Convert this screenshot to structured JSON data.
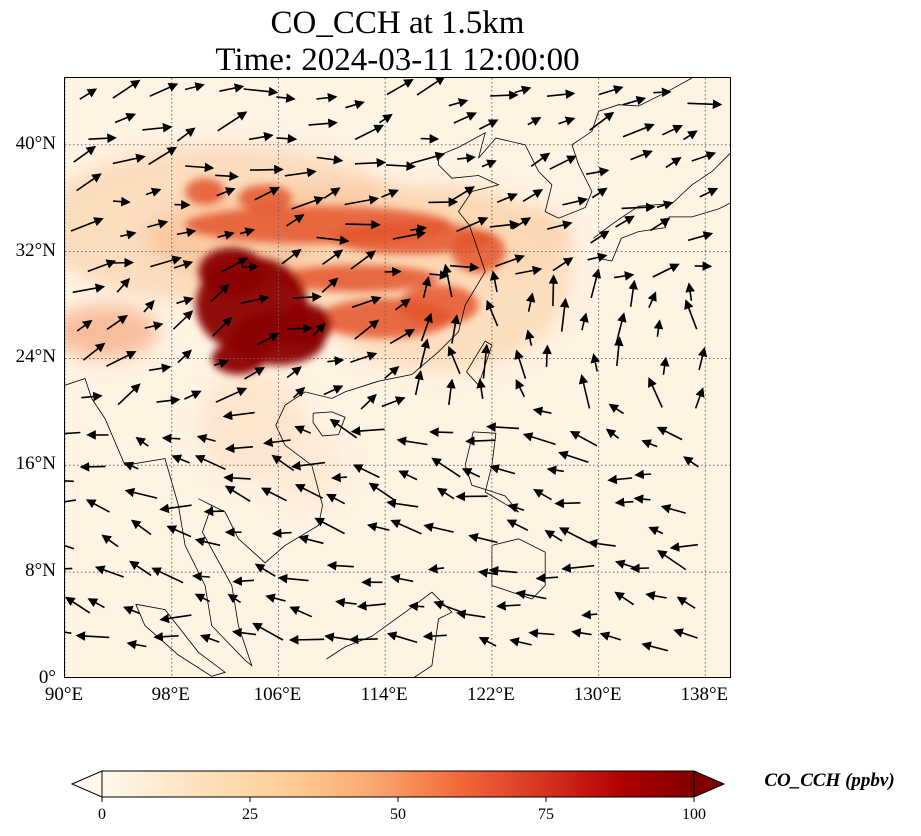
{
  "map": {
    "title_line_1": "CO_CCH at 1.5km",
    "title_line_2": "Time: 2024-03-11 12:00:00",
    "lon_range": [
      90,
      140
    ],
    "lat_range": [
      0,
      45
    ],
    "lon_ticks": [
      "90°E",
      "98°E",
      "106°E",
      "114°E",
      "122°E",
      "130°E",
      "138°E"
    ],
    "lat_ticks": [
      "40°N",
      "32°N",
      "24°N",
      "16°N",
      "8°N",
      "0°"
    ],
    "gridlines": true,
    "colormap": "OrRd",
    "colors": {
      "low": "#fff5e8",
      "mid": "#f26a3c",
      "high": "#7f0000",
      "coastline": "#000000",
      "wind_arrow": "#000000"
    }
  },
  "colorbar": {
    "label": "CO_CCH (ppbv)",
    "min": 0,
    "max": 100,
    "ticks": [
      "0",
      "25",
      "50",
      "75",
      "100"
    ],
    "extend": "both"
  }
}
